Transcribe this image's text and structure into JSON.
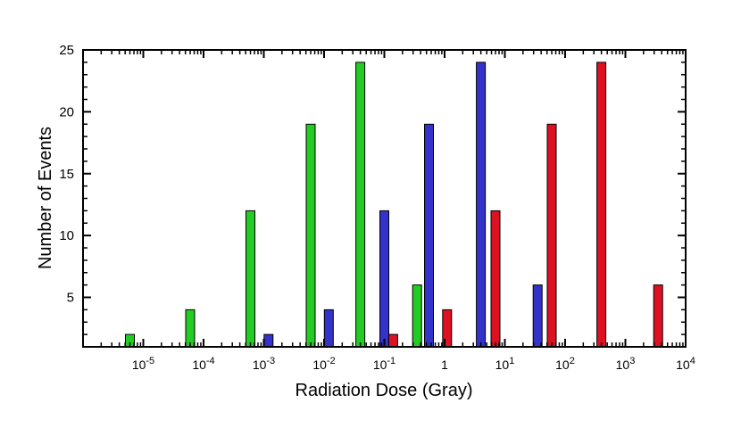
{
  "chart_data": {
    "type": "bar",
    "xscale": "log",
    "xlabel": "Radiation Dose (Gray)",
    "ylabel": "Number of Events",
    "xlim": [
      1e-06,
      10000
    ],
    "ylim": [
      1,
      25
    ],
    "grid": false,
    "x_ticks": [
      {
        "value": 1e-05,
        "base": "10",
        "exp": "-5"
      },
      {
        "value": 0.0001,
        "base": "10",
        "exp": "-4"
      },
      {
        "value": 0.001,
        "base": "10",
        "exp": "-3"
      },
      {
        "value": 0.01,
        "base": "10",
        "exp": "-2"
      },
      {
        "value": 0.1,
        "base": "10",
        "exp": "-1"
      },
      {
        "value": 1,
        "base": "1",
        "exp": ""
      },
      {
        "value": 10,
        "base": "10",
        "exp": "1"
      },
      {
        "value": 100,
        "base": "10",
        "exp": "2"
      },
      {
        "value": 1000,
        "base": "10",
        "exp": "3"
      },
      {
        "value": 10000,
        "base": "10",
        "exp": "4"
      }
    ],
    "y_ticks": [
      5,
      10,
      15,
      20,
      25
    ],
    "series": [
      {
        "color": "#22cc22",
        "x": [
          6e-06,
          6e-05,
          0.0006,
          0.006,
          0.04,
          0.35
        ],
        "values": [
          2,
          4,
          12,
          19,
          24,
          6
        ]
      },
      {
        "color": "#3333cc",
        "x": [
          0.0012,
          0.012,
          0.1,
          0.55,
          4,
          35
        ],
        "values": [
          2,
          4,
          12,
          19,
          24,
          6
        ]
      },
      {
        "color": "#dd1122",
        "x": [
          0.14,
          1.1,
          7,
          60,
          400,
          3500
        ],
        "values": [
          2,
          4,
          12,
          19,
          24,
          6
        ]
      }
    ]
  }
}
